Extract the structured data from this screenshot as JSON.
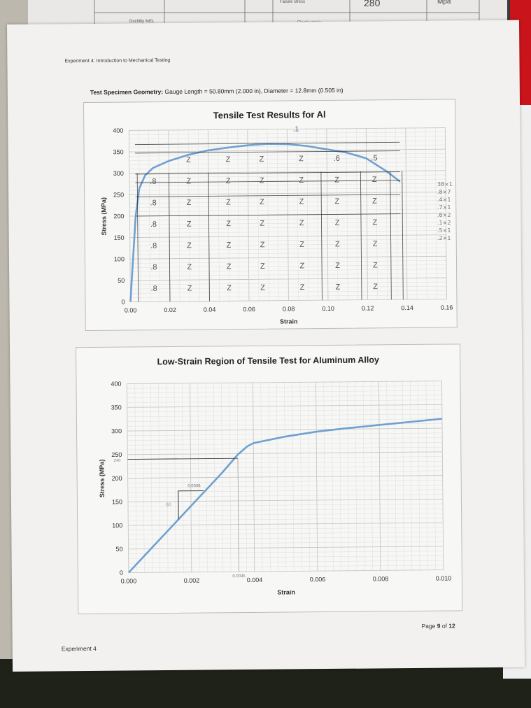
{
  "background_sheet": {
    "row1": {
      "label": "",
      "value_label": "Failure stress",
      "value": "280",
      "unit": "Mpa"
    },
    "row2": {
      "label": "Ductility %EL",
      "value_label": "Elastic strain"
    }
  },
  "page": {
    "header": "Experiment 4: Introduction to Mechanical Testing",
    "geometry_label": "Test Specimen Geometry:",
    "geometry_value": "Gauge Length = 50.80mm (2.000 in), Diameter = 12.8mm (0.505 in)",
    "footer_left": "Experiment 4",
    "footer_page_prefix": "Page ",
    "footer_page_num": "9",
    "footer_page_mid": " of ",
    "footer_page_total": "12"
  },
  "margin_notes": [
    "38×1",
    ".8×7",
    ".4×1",
    ".7×1",
    ".6×2",
    ".1×2",
    ".5×1",
    ".2×1"
  ],
  "colors": {
    "curve": "#6fa0d0",
    "grid": "#c8c8c8",
    "ink": "#333333"
  },
  "chart_data": [
    {
      "type": "line",
      "title": "Tensile Test Results for Al",
      "xlabel": "Strain",
      "ylabel": "Stress (MPa)",
      "xlim": [
        0,
        0.16
      ],
      "ylim": [
        0,
        400
      ],
      "xticks": [
        "0.00",
        "0.02",
        "0.04",
        "0.06",
        "0.08",
        "0.10",
        "0.12",
        "0.14",
        "0.16"
      ],
      "yticks": [
        "0",
        "50",
        "100",
        "150",
        "200",
        "250",
        "300",
        "350",
        "400"
      ],
      "grid": true,
      "series": [
        {
          "name": "Al tensile curve",
          "x": [
            0,
            0.003,
            0.005,
            0.008,
            0.012,
            0.02,
            0.03,
            0.04,
            0.05,
            0.06,
            0.07,
            0.08,
            0.09,
            0.1,
            0.11,
            0.12,
            0.13,
            0.137
          ],
          "y": [
            0,
            200,
            265,
            295,
            312,
            328,
            342,
            352,
            358,
            363,
            366,
            365,
            360,
            352,
            344,
            330,
            300,
            275
          ]
        }
      ],
      "annotations": {
        "ink_lines_y": [
          367,
          347,
          298,
          278,
          245,
          200
        ],
        "grid_counts": [
          "Z",
          "1",
          ".8",
          ".6",
          ".5",
          ".4",
          ".2"
        ],
        "uts_marker": ".1"
      }
    },
    {
      "type": "line",
      "title": "Low-Strain Region of Tensile Test for Aluminum Alloy",
      "xlabel": "Strain",
      "ylabel": "Stress (MPa)",
      "xlim": [
        0,
        0.01
      ],
      "ylim": [
        0,
        400
      ],
      "xticks": [
        "0.000",
        "0.002",
        "0.004",
        "0.006",
        "0.008",
        "0.010"
      ],
      "yticks": [
        "0",
        "50",
        "100",
        "150",
        "200",
        "250",
        "300",
        "350",
        "400"
      ],
      "grid": true,
      "series": [
        {
          "name": "Al low-strain curve",
          "x": [
            0,
            0.001,
            0.002,
            0.003,
            0.0035,
            0.0038,
            0.004,
            0.005,
            0.006,
            0.007,
            0.008,
            0.009,
            0.01
          ],
          "y": [
            0,
            70,
            140,
            210,
            248,
            265,
            272,
            285,
            295,
            302,
            308,
            314,
            320
          ]
        }
      ],
      "annotations": {
        "yield_line_y": 240,
        "yield_label": "240",
        "offset_strain_label": "0.0035",
        "slope_dx_label": "0.0008",
        "slope_dy_label": "60"
      }
    }
  ]
}
